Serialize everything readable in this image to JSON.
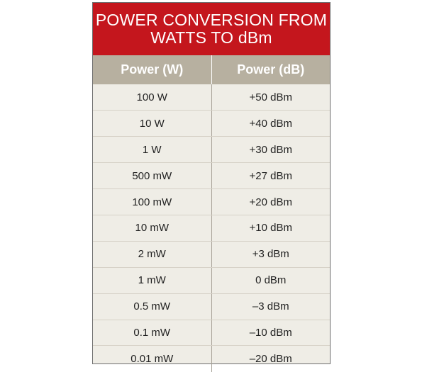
{
  "title": {
    "line1": "POWER CONVERSION FROM",
    "line2": "WATTS TO dBm"
  },
  "colors": {
    "title_bg": "#c4161d",
    "header_bg": "#b7b0a0",
    "body_bg": "#efede6"
  },
  "table": {
    "headers": [
      "Power (W)",
      "Power (dB)"
    ],
    "rows": [
      [
        "100 W",
        "+50 dBm"
      ],
      [
        "10 W",
        "+40 dBm"
      ],
      [
        "1 W",
        "+30 dBm"
      ],
      [
        "500 mW",
        "+27 dBm"
      ],
      [
        "100 mW",
        "+20 dBm"
      ],
      [
        "10 mW",
        "+10 dBm"
      ],
      [
        "2 mW",
        "+3 dBm"
      ],
      [
        "1 mW",
        "0 dBm"
      ],
      [
        "0.5 mW",
        "–3 dBm"
      ],
      [
        "0.1 mW",
        "–10 dBm"
      ],
      [
        "0.01 mW",
        "–20 dBm"
      ]
    ]
  }
}
